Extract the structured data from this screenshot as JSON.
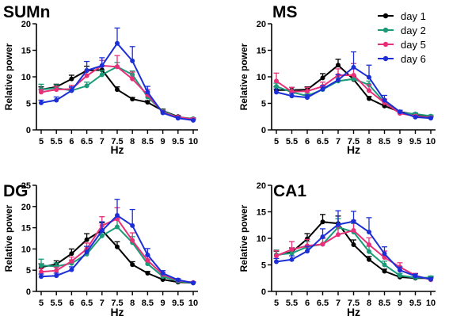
{
  "legend": {
    "position": "top-right",
    "entries": [
      {
        "label": "day 1",
        "color": "#000000"
      },
      {
        "label": "day 2",
        "color": "#1a9a78"
      },
      {
        "label": "day 5",
        "color": "#e8307a"
      },
      {
        "label": "day 6",
        "color": "#1c2fd6"
      }
    ]
  },
  "chart_data": [
    {
      "type": "line",
      "title": "SUMn",
      "xlabel": "Hz",
      "ylabel": "Relative power",
      "x": [
        5,
        5.5,
        6,
        6.5,
        7,
        7.5,
        8,
        8.5,
        9,
        9.5,
        10
      ],
      "x_tick_labels": [
        "5",
        "5.5",
        "6",
        "6.5",
        "7",
        "7.5",
        "8",
        "8.5",
        "9",
        "9.5",
        "10"
      ],
      "ylim": [
        0,
        20
      ],
      "y_ticks": [
        0,
        5,
        10,
        15,
        20
      ],
      "grid": false,
      "series": [
        {
          "name": "day 1",
          "color": "#000000",
          "values": [
            7.6,
            8.1,
            9.6,
            11.2,
            11.3,
            7.6,
            5.8,
            5.2,
            3.6,
            2.5,
            1.9
          ],
          "errors": [
            0.5,
            0.5,
            0.7,
            0.8,
            0.7,
            0.5,
            0.3,
            0.3,
            0.3,
            0.2,
            0.2
          ]
        },
        {
          "name": "day 2",
          "color": "#1a9a78",
          "values": [
            7.6,
            7.9,
            7.4,
            8.3,
            10.4,
            11.9,
            10.4,
            6.2,
            3.5,
            2.4,
            2.1
          ],
          "errors": [
            1.0,
            0.6,
            0.6,
            0.7,
            0.8,
            0.8,
            0.7,
            0.5,
            0.3,
            0.2,
            0.2
          ]
        },
        {
          "name": "day 5",
          "color": "#e8307a",
          "values": [
            7.1,
            7.6,
            7.7,
            10.2,
            12.1,
            11.9,
            9.6,
            6.6,
            3.3,
            2.4,
            2.0
          ],
          "errors": [
            0.5,
            0.6,
            0.7,
            0.9,
            1.0,
            2.1,
            1.3,
            1.0,
            0.4,
            0.2,
            0.2
          ]
        },
        {
          "name": "day 6",
          "color": "#1c2fd6",
          "values": [
            5.1,
            5.6,
            7.4,
            11.2,
            12.1,
            16.3,
            13.0,
            7.1,
            3.2,
            2.2,
            1.8
          ],
          "errors": [
            0.5,
            0.6,
            0.7,
            1.7,
            1.5,
            2.9,
            2.7,
            1.1,
            0.4,
            0.3,
            0.2
          ]
        }
      ]
    },
    {
      "type": "line",
      "title": "MS",
      "xlabel": "Hz",
      "ylabel": "Relative power",
      "x": [
        5,
        5.5,
        6,
        6.5,
        7,
        7.5,
        8,
        8.5,
        9,
        9.5,
        10
      ],
      "x_tick_labels": [
        "5",
        "5.5",
        "6",
        "6.5",
        "7",
        "7.5",
        "8",
        "8.5",
        "9",
        "9.5",
        "10"
      ],
      "ylim": [
        0,
        20
      ],
      "y_ticks": [
        0,
        5,
        10,
        15,
        20
      ],
      "grid": false,
      "series": [
        {
          "name": "day 1",
          "color": "#000000",
          "values": [
            7.5,
            7.5,
            7.6,
            9.8,
            12.2,
            9.5,
            5.9,
            4.5,
            3.4,
            2.9,
            2.5
          ],
          "errors": [
            0.6,
            0.5,
            0.5,
            0.8,
            1.1,
            0.6,
            0.4,
            0.3,
            0.2,
            0.2,
            0.2
          ]
        },
        {
          "name": "day 2",
          "color": "#1a9a78",
          "values": [
            8.2,
            7.1,
            6.4,
            7.6,
            9.2,
            9.6,
            8.5,
            5.2,
            3.2,
            3.0,
            2.6
          ],
          "errors": [
            0.6,
            0.5,
            0.5,
            0.5,
            0.6,
            0.7,
            0.7,
            0.5,
            0.3,
            0.2,
            0.2
          ]
        },
        {
          "name": "day 5",
          "color": "#e8307a",
          "values": [
            9.2,
            7.2,
            7.3,
            8.2,
            10.3,
            10.3,
            7.4,
            5.1,
            3.1,
            2.6,
            2.3
          ],
          "errors": [
            1.5,
            0.8,
            0.7,
            0.8,
            1.2,
            2.2,
            1.1,
            0.7,
            0.3,
            0.2,
            0.2
          ]
        },
        {
          "name": "day 6",
          "color": "#1c2fd6",
          "values": [
            7.1,
            6.4,
            6.1,
            7.7,
            9.4,
            11.8,
            9.9,
            5.6,
            3.4,
            2.4,
            2.2
          ],
          "errors": [
            0.6,
            0.5,
            0.5,
            0.6,
            1.0,
            2.9,
            2.3,
            0.9,
            0.3,
            0.2,
            0.2
          ]
        }
      ]
    },
    {
      "type": "line",
      "title": "DG",
      "xlabel": "Hz",
      "ylabel": "Relative power",
      "x": [
        5,
        5.5,
        6,
        6.5,
        7,
        7.5,
        8,
        8.5,
        9,
        9.5,
        10
      ],
      "x_tick_labels": [
        "5",
        "5.5",
        "6",
        "6.5",
        "7",
        "7.5",
        "8",
        "8.5",
        "9",
        "9.5",
        "10"
      ],
      "ylim": [
        0,
        25
      ],
      "y_ticks": [
        0,
        5,
        10,
        15,
        20,
        25
      ],
      "grid": false,
      "series": [
        {
          "name": "day 1",
          "color": "#000000",
          "values": [
            5.7,
            6.4,
            8.9,
            12.2,
            14.4,
            10.5,
            6.3,
            4.3,
            2.8,
            2.2,
            2.0
          ],
          "errors": [
            0.8,
            0.8,
            1.1,
            1.4,
            1.8,
            1.2,
            0.7,
            0.4,
            0.3,
            0.2,
            0.2
          ]
        },
        {
          "name": "day 2",
          "color": "#1a9a78",
          "values": [
            6.1,
            5.9,
            6.6,
            8.8,
            13.1,
            15.2,
            11.5,
            6.5,
            3.5,
            2.4,
            2.0
          ],
          "errors": [
            1.5,
            0.8,
            0.8,
            1.0,
            1.5,
            1.8,
            1.4,
            0.9,
            0.4,
            0.3,
            0.2
          ]
        },
        {
          "name": "day 5",
          "color": "#e8307a",
          "values": [
            4.6,
            4.9,
            7.1,
            10.0,
            15.5,
            17.1,
            12.0,
            7.3,
            4.0,
            2.6,
            2.1
          ],
          "errors": [
            0.8,
            0.8,
            1.0,
            1.4,
            2.1,
            2.6,
            1.8,
            1.1,
            0.5,
            0.3,
            0.2
          ]
        },
        {
          "name": "day 6",
          "color": "#1c2fd6",
          "values": [
            3.5,
            3.7,
            5.1,
            9.3,
            14.3,
            17.9,
            15.5,
            8.6,
            4.3,
            2.7,
            2.0
          ],
          "errors": [
            0.6,
            0.6,
            0.7,
            1.3,
            2.1,
            3.8,
            3.8,
            1.5,
            0.6,
            0.3,
            0.2
          ]
        }
      ]
    },
    {
      "type": "line",
      "title": "CA1",
      "xlabel": "Hz",
      "ylabel": "Relative power",
      "x": [
        5,
        5.5,
        6,
        6.5,
        7,
        7.5,
        8,
        8.5,
        9,
        9.5,
        10
      ],
      "x_tick_labels": [
        "5",
        "5.5",
        "6",
        "6.5",
        "7",
        "7.5",
        "8",
        "8.5",
        "9",
        "9.5",
        "10"
      ],
      "ylim": [
        0,
        20
      ],
      "y_ticks": [
        0,
        5,
        10,
        15,
        20
      ],
      "grid": false,
      "series": [
        {
          "name": "day 1",
          "color": "#000000",
          "values": [
            6.8,
            7.4,
            9.9,
            13.1,
            12.8,
            8.8,
            6.0,
            3.8,
            2.7,
            2.5,
            2.5
          ],
          "errors": [
            0.8,
            0.8,
            1.0,
            1.4,
            1.4,
            0.9,
            0.6,
            0.4,
            0.3,
            0.3,
            0.3
          ]
        },
        {
          "name": "day 2",
          "color": "#1a9a78",
          "values": [
            6.9,
            7.2,
            8.4,
            8.9,
            12.1,
            11.2,
            7.5,
            5.0,
            3.0,
            2.6,
            2.6
          ],
          "errors": [
            0.9,
            0.9,
            1.0,
            1.1,
            1.6,
            1.6,
            1.0,
            0.7,
            0.4,
            0.3,
            0.3
          ]
        },
        {
          "name": "day 5",
          "color": "#e8307a",
          "values": [
            6.7,
            7.9,
            8.6,
            8.9,
            10.7,
            11.5,
            8.8,
            6.4,
            4.6,
            3.0,
            2.2
          ],
          "errors": [
            1.0,
            1.5,
            1.2,
            1.2,
            1.5,
            1.9,
            1.3,
            1.2,
            0.8,
            0.4,
            0.3
          ]
        },
        {
          "name": "day 6",
          "color": "#1c2fd6",
          "values": [
            5.6,
            6.0,
            7.6,
            10.3,
            12.6,
            13.2,
            11.2,
            7.1,
            4.0,
            2.9,
            2.3
          ],
          "errors": [
            0.6,
            0.7,
            0.9,
            1.5,
            2.6,
            1.9,
            2.7,
            1.3,
            0.6,
            0.4,
            0.3
          ]
        }
      ]
    }
  ]
}
